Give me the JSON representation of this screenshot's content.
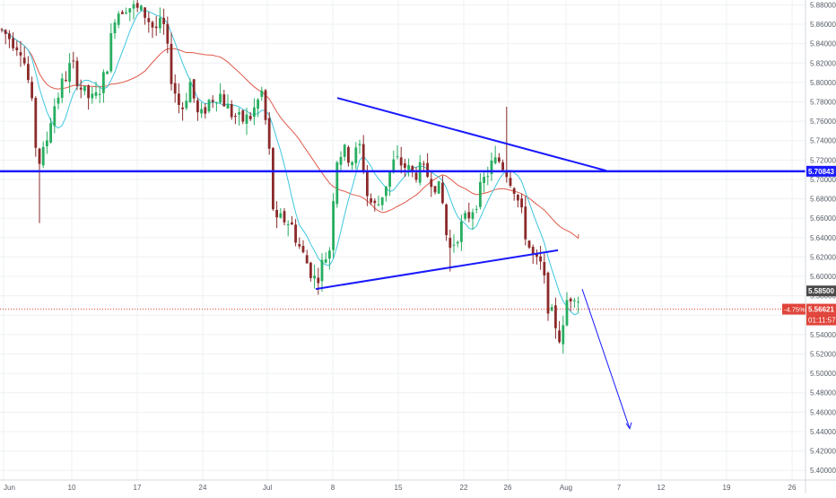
{
  "chart_data": {
    "type": "candlestick",
    "symbol_context": "price chart with moving averages and drawn trendlines",
    "x_axis": {
      "tick_labels": [
        "Jun",
        "10",
        "17",
        "24",
        "Jul",
        "8",
        "15",
        "22",
        "26",
        "Aug",
        "7",
        "12",
        "19",
        "26"
      ]
    },
    "y_axis": {
      "range": [
        5.39,
        5.885
      ],
      "tick_labels": [
        "5.88000",
        "5.86000",
        "5.84000",
        "5.82000",
        "5.80000",
        "5.78000",
        "5.76000",
        "5.74000",
        "5.72000",
        "5.70000",
        "5.68000",
        "5.66000",
        "5.64000",
        "5.62000",
        "5.60000",
        "5.58000",
        "5.56000",
        "5.54000",
        "5.52000",
        "5.50000",
        "5.48000",
        "5.46000",
        "5.44000",
        "5.42000",
        "5.40000"
      ],
      "tick_values": [
        5.88,
        5.86,
        5.84,
        5.82,
        5.8,
        5.78,
        5.76,
        5.74,
        5.72,
        5.7,
        5.68,
        5.66,
        5.64,
        5.62,
        5.6,
        5.58,
        5.56,
        5.54,
        5.52,
        5.5,
        5.48,
        5.46,
        5.44,
        5.42,
        5.4
      ]
    },
    "price_labels": {
      "horizontal_level": {
        "text": "5.70843",
        "value": 5.70843,
        "color": "#1a1aff"
      },
      "last_close": {
        "text": "5.58500",
        "value": 5.585,
        "color": "#4a4a4a"
      },
      "current_price": {
        "text": "5.56621",
        "value": 5.56621,
        "color": "#e0443a"
      },
      "change_pct": {
        "text": "-4.75%"
      },
      "countdown": {
        "text": "01:11:57"
      }
    },
    "colors": {
      "up": "#26a69a",
      "down": "#ef5350",
      "up_body": "#27ae60",
      "down_body": "#8b2a2a",
      "ma_fast": "#3ec6e0",
      "ma_slow": "#e05a4a",
      "drawing": "#1a1aff",
      "grid": "#eef0f3"
    }
  }
}
